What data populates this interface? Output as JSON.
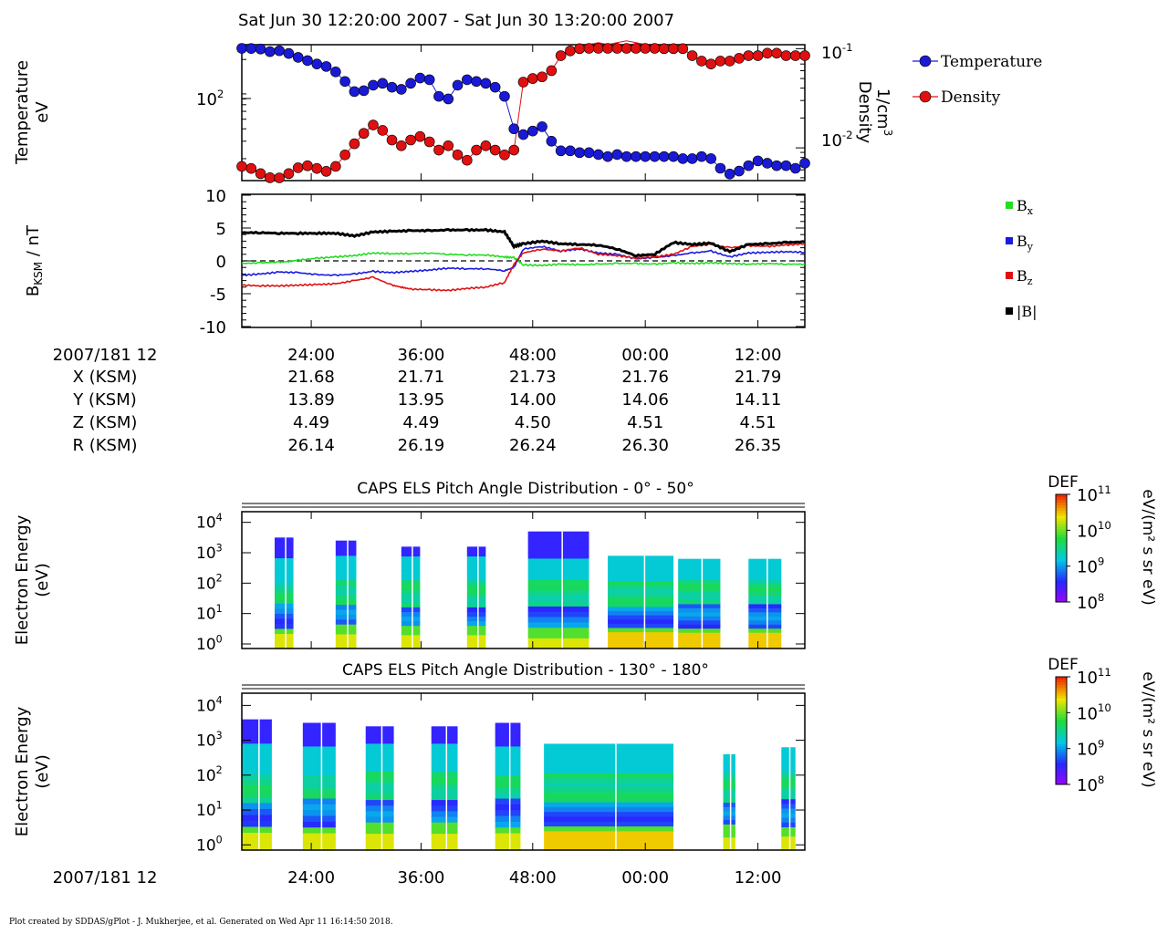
{
  "header": {
    "title": "Sat Jun 30 12:20:00 2007 - Sat Jun 30 13:20:00 2007"
  },
  "footer": {
    "credit": "Plot created by SDDAS/gPlot - J. Mukherjee, et al.  Generated on Wed Apr 11 16:14:50 2018."
  },
  "time_axis": {
    "ticks": [
      "24:00",
      "36:00",
      "48:00",
      "00:00",
      "12:00"
    ],
    "date_label": "2007/181 12"
  },
  "ephemeris": {
    "rows": [
      {
        "label": "X (KSM)",
        "values": [
          "21.68",
          "21.71",
          "21.73",
          "21.76",
          "21.79"
        ]
      },
      {
        "label": "Y (KSM)",
        "values": [
          "13.89",
          "13.95",
          "14.00",
          "14.06",
          "14.11"
        ]
      },
      {
        "label": "Z (KSM)",
        "values": [
          "4.49",
          "4.49",
          "4.50",
          "4.51",
          "4.51"
        ]
      },
      {
        "label": "R (KSM)",
        "values": [
          "26.14",
          "26.19",
          "26.24",
          "26.30",
          "26.35"
        ]
      }
    ]
  },
  "colors": {
    "temperature": "#1a1ad6",
    "density": "#e01010",
    "bx": "#22dd22",
    "by": "#1a1ae0",
    "bz": "#e01010",
    "btot": "#000000"
  },
  "chart_data": [
    {
      "type": "scatter",
      "name": "moments",
      "ylabel_left": [
        "Temperature",
        "eV"
      ],
      "ylabel_right": [
        "Density",
        "1/cm",
        "3"
      ],
      "left_ticks": [
        {
          "base": "10",
          "exp": "2"
        }
      ],
      "right_ticks": [
        {
          "base": "10",
          "exp": "-1"
        },
        {
          "base": "10",
          "exp": "-2"
        }
      ],
      "y_scale": "log",
      "series": [
        {
          "name": "Temperature",
          "color": "#1a1ad6",
          "x": [
            0,
            1,
            2,
            3,
            4,
            5,
            6,
            7,
            8,
            9,
            10,
            11,
            12,
            13,
            14,
            15,
            16,
            17,
            18,
            19,
            20,
            21,
            22,
            23,
            24,
            25,
            26,
            27,
            28,
            29,
            30,
            31,
            32,
            33,
            34,
            35,
            36,
            37,
            38,
            39,
            40,
            41,
            42,
            43,
            44,
            45,
            46,
            47,
            48,
            49,
            50,
            51,
            52,
            53,
            54,
            55,
            56,
            57,
            58,
            59,
            60
          ],
          "y": [
            260,
            258,
            255,
            240,
            245,
            230,
            210,
            195,
            180,
            170,
            150,
            120,
            95,
            97,
            110,
            115,
            105,
            100,
            115,
            130,
            125,
            85,
            80,
            110,
            125,
            120,
            115,
            105,
            85,
            40,
            35,
            38,
            42,
            30,
            24,
            24,
            23,
            23,
            22,
            21,
            22,
            21,
            21,
            21,
            21,
            21,
            21,
            20,
            20,
            21,
            20,
            16,
            14,
            15,
            17,
            19,
            18,
            17,
            17,
            16,
            18
          ]
        },
        {
          "name": "Density",
          "color": "#e01010",
          "x": [
            0,
            1,
            2,
            3,
            4,
            5,
            6,
            7,
            8,
            9,
            10,
            11,
            12,
            13,
            14,
            15,
            16,
            17,
            18,
            19,
            20,
            21,
            22,
            23,
            24,
            25,
            26,
            27,
            28,
            29,
            30,
            31,
            32,
            33,
            34,
            35,
            36,
            37,
            38,
            39,
            40,
            41,
            42,
            43,
            44,
            45,
            46,
            47,
            48,
            49,
            50,
            51,
            52,
            53,
            54,
            55,
            56,
            57,
            58,
            59,
            60
          ],
          "y": [
            0.0065,
            0.0062,
            0.0055,
            0.005,
            0.0048,
            0.0055,
            0.0063,
            0.0066,
            0.0062,
            0.0058,
            0.0065,
            0.0085,
            0.011,
            0.014,
            0.017,
            0.015,
            0.012,
            0.0105,
            0.012,
            0.013,
            0.0115,
            0.0095,
            0.0105,
            0.0085,
            0.0075,
            0.0095,
            0.0105,
            0.0095,
            0.0085,
            0.0095,
            0.046,
            0.05,
            0.052,
            0.06,
            0.085,
            0.095,
            0.1,
            0.11,
            0.115,
            0.11,
            0.115,
            0.12,
            0.115,
            0.11,
            0.105,
            0.1,
            0.1,
            0.1,
            0.085,
            0.075,
            0.07,
            0.075,
            0.075,
            0.08,
            0.085,
            0.085,
            0.09,
            0.09,
            0.085,
            0.085,
            0.085
          ]
        }
      ]
    },
    {
      "type": "line",
      "name": "magnetic_field",
      "ylabel": "B",
      "ylabel_sub": "KSM",
      "ylabel_unit": " / nT",
      "ylim": [
        -10,
        10
      ],
      "y_ticks": [
        "10",
        "5",
        "0",
        "-5",
        "-10"
      ],
      "series": [
        {
          "name": "B",
          "sub": "x",
          "color": "#22dd22",
          "x": [
            0,
            2,
            4,
            5,
            6,
            8,
            10,
            12,
            14,
            16,
            18,
            20,
            22,
            24,
            26,
            28,
            29,
            30,
            32,
            34,
            36,
            38,
            40,
            42,
            44,
            46,
            48,
            50,
            52,
            54,
            56,
            58,
            60
          ],
          "y": [
            -0.4,
            -0.3,
            -0.2,
            -0.1,
            0.1,
            0.4,
            0.6,
            0.8,
            1.2,
            1.1,
            1.1,
            1.2,
            1.0,
            0.9,
            0.9,
            0.6,
            0.5,
            -0.6,
            -0.7,
            -0.5,
            -0.6,
            -0.5,
            -0.4,
            -0.4,
            -0.5,
            -0.3,
            -0.4,
            -0.3,
            -0.4,
            -0.5,
            -0.4,
            -0.5,
            -0.5
          ]
        },
        {
          "name": "B",
          "sub": "y",
          "color": "#1a1ae0",
          "x": [
            0,
            2,
            4,
            6,
            8,
            10,
            12,
            14,
            16,
            18,
            20,
            22,
            24,
            26,
            28,
            29,
            30,
            32,
            34,
            36,
            38,
            40,
            42,
            44,
            46,
            48,
            50,
            52,
            54,
            56,
            58,
            60
          ],
          "y": [
            -2.2,
            -2.0,
            -1.7,
            -1.8,
            -2.1,
            -2.2,
            -2.0,
            -1.6,
            -1.8,
            -1.6,
            -1.4,
            -1.1,
            -1.2,
            -1.2,
            -1.5,
            -1.0,
            1.8,
            2.2,
            1.5,
            1.8,
            1.2,
            1.0,
            0.3,
            0.5,
            0.8,
            1.2,
            1.5,
            0.6,
            1.2,
            1.3,
            1.4,
            1.3
          ]
        },
        {
          "name": "B",
          "sub": "z",
          "color": "#e01010",
          "x": [
            0,
            2,
            4,
            6,
            8,
            10,
            12,
            14,
            16,
            17,
            18,
            20,
            22,
            24,
            26,
            28,
            29,
            30,
            32,
            34,
            36,
            38,
            40,
            42,
            44,
            46,
            48,
            50,
            52,
            54,
            56,
            58,
            60
          ],
          "y": [
            -3.7,
            -3.8,
            -3.8,
            -3.7,
            -3.6,
            -3.5,
            -3.0,
            -2.5,
            -3.7,
            -4.0,
            -4.3,
            -4.4,
            -4.5,
            -4.2,
            -4.0,
            -3.3,
            -0.5,
            1.2,
            1.8,
            1.5,
            2.0,
            1.0,
            0.8,
            0.4,
            0.6,
            1.0,
            2.2,
            2.5,
            2.0,
            2.3,
            2.2,
            2.4,
            2.6
          ]
        },
        {
          "name": "|B|",
          "sub": "",
          "color": "#000000",
          "x": [
            0,
            2,
            4,
            6,
            8,
            10,
            12,
            14,
            16,
            18,
            20,
            22,
            24,
            26,
            28,
            29,
            30,
            32,
            34,
            36,
            38,
            40,
            42,
            44,
            46,
            48,
            50,
            52,
            54,
            56,
            58,
            60
          ],
          "y": [
            4.3,
            4.3,
            4.2,
            4.2,
            4.2,
            4.2,
            3.8,
            4.4,
            4.5,
            4.6,
            4.6,
            4.7,
            4.7,
            4.7,
            4.4,
            2.2,
            2.6,
            3.0,
            2.6,
            2.5,
            2.4,
            1.8,
            0.8,
            1.0,
            2.8,
            2.5,
            2.7,
            1.4,
            2.5,
            2.6,
            2.8,
            2.9
          ]
        }
      ]
    },
    {
      "type": "heatmap",
      "name": "spectrogram_0_50",
      "title": "CAPS ELS Pitch Angle Distribution - 0° - 50°",
      "ylabel": [
        "Electron Energy",
        "(eV)"
      ],
      "y_scale": "log",
      "y_ticks": [
        {
          "base": "10",
          "exp": "4"
        },
        {
          "base": "10",
          "exp": "3"
        },
        {
          "base": "10",
          "exp": "2"
        },
        {
          "base": "10",
          "exp": "1"
        },
        {
          "base": "10",
          "exp": "0"
        }
      ],
      "colorbar": {
        "title": "DEF",
        "unit": "eV/(m² s sr eV)",
        "ticks": [
          {
            "base": "10",
            "exp": "11"
          },
          {
            "base": "10",
            "exp": "10"
          },
          {
            "base": "10",
            "exp": "9"
          },
          {
            "base": "10",
            "exp": "8"
          }
        ]
      },
      "blocks": [
        {
          "t0": 3.5,
          "t1": 5.5,
          "emax": 3.5,
          "lowfill": 5
        },
        {
          "t0": 10,
          "t1": 12.2,
          "emax": 3.4,
          "lowfill": 5
        },
        {
          "t0": 17,
          "t1": 19,
          "emax": 3.2,
          "lowfill": 4
        },
        {
          "t0": 24,
          "t1": 26,
          "emax": 3.2,
          "lowfill": 5
        },
        {
          "t0": 30.5,
          "t1": 37,
          "emax": 3.7,
          "lowfill": 6
        },
        {
          "t0": 39,
          "t1": 46,
          "emax": 2.9,
          "lowfill": 7
        },
        {
          "t0": 46.5,
          "t1": 51,
          "emax": 2.8,
          "lowfill": 7
        },
        {
          "t0": 54,
          "t1": 57.5,
          "emax": 2.8,
          "lowfill": 7
        }
      ]
    },
    {
      "type": "heatmap",
      "name": "spectrogram_130_180",
      "title": "CAPS ELS Pitch Angle Distribution - 130° - 180°",
      "ylabel": [
        "Electron Energy",
        "(eV)"
      ],
      "y_scale": "log",
      "y_ticks": [
        {
          "base": "10",
          "exp": "4"
        },
        {
          "base": "10",
          "exp": "3"
        },
        {
          "base": "10",
          "exp": "2"
        },
        {
          "base": "10",
          "exp": "1"
        },
        {
          "base": "10",
          "exp": "0"
        }
      ],
      "colorbar": {
        "title": "DEF",
        "unit": "eV/(m² s sr eV)",
        "ticks": [
          {
            "base": "10",
            "exp": "11"
          },
          {
            "base": "10",
            "exp": "10"
          },
          {
            "base": "10",
            "exp": "9"
          },
          {
            "base": "10",
            "exp": "8"
          }
        ]
      },
      "blocks": [
        {
          "t0": 0,
          "t1": 3.2,
          "emax": 3.6,
          "lowfill": 5
        },
        {
          "t0": 6.5,
          "t1": 10,
          "emax": 3.5,
          "lowfill": 5
        },
        {
          "t0": 13.2,
          "t1": 16.2,
          "emax": 3.4,
          "lowfill": 5
        },
        {
          "t0": 20.2,
          "t1": 23,
          "emax": 3.4,
          "lowfill": 5
        },
        {
          "t0": 27,
          "t1": 29.7,
          "emax": 3.5,
          "lowfill": 5
        },
        {
          "t0": 32.2,
          "t1": 46,
          "emax": 2.9,
          "lowfill": 8
        },
        {
          "t0": 51.3,
          "t1": 52.6,
          "emax": 2.6,
          "lowfill": 5
        },
        {
          "t0": 57.5,
          "t1": 59,
          "emax": 2.8,
          "lowfill": 5
        }
      ]
    }
  ]
}
